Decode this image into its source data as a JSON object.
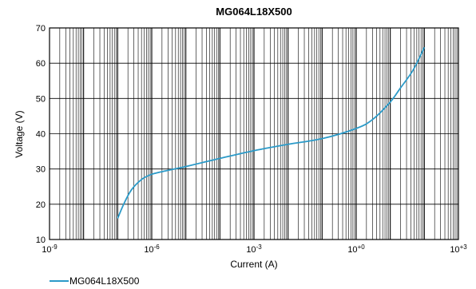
{
  "chart_data": {
    "type": "line",
    "title": "MG064L18X500",
    "xlabel": "Current (A)",
    "ylabel": "Voltage (V)",
    "xscale": "log",
    "xlim_exponents": [
      -9,
      3
    ],
    "ylim": [
      10,
      70
    ],
    "y_ticks": [
      10,
      20,
      30,
      40,
      50,
      60,
      70
    ],
    "x_ticks": [
      {
        "base": "10",
        "exp": "-9",
        "value": 1e-09
      },
      {
        "base": "10",
        "exp": "-6",
        "value": 1e-06
      },
      {
        "base": "10",
        "exp": "-3",
        "value": 0.001
      },
      {
        "base": "10",
        "exp": "+0",
        "value": 1
      },
      {
        "base": "10",
        "exp": "+3",
        "value": 1000
      }
    ],
    "grid": true,
    "legend": "bottom-left",
    "series": [
      {
        "name": "MG064L18X500",
        "color": "#2b9ac8",
        "x": [
          1e-07,
          1.5e-07,
          2.5e-07,
          5e-07,
          1e-06,
          3e-06,
          1e-05,
          0.0001,
          0.001,
          0.01,
          0.1,
          1,
          3,
          10,
          20,
          40,
          60,
          100
        ],
        "y": [
          16,
          20,
          24,
          27,
          28.5,
          29.6,
          30.7,
          33,
          35.2,
          37,
          38.6,
          41.5,
          44,
          49,
          53,
          57,
          60,
          64.5
        ]
      }
    ]
  }
}
